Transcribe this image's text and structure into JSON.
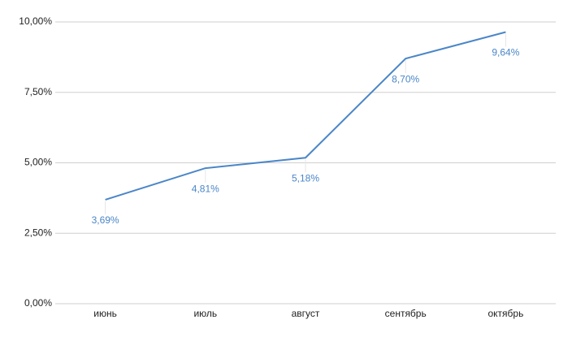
{
  "chart_data": {
    "type": "line",
    "categories": [
      "июнь",
      "июль",
      "август",
      "сентябрь",
      "октябрь"
    ],
    "series": [
      {
        "color": "#4a86c8",
        "values": [
          3.69,
          4.81,
          5.18,
          8.7,
          9.64
        ],
        "value_labels": [
          "3,69%",
          "4,81%",
          "5,18%",
          "8,70%",
          "9,64%"
        ]
      }
    ],
    "ylim": [
      0,
      10
    ],
    "yticks": [
      {
        "value": 0,
        "label": "0,00%"
      },
      {
        "value": 2.5,
        "label": "2,50%"
      },
      {
        "value": 5,
        "label": "5,00%"
      },
      {
        "value": 7.5,
        "label": "7,50%"
      },
      {
        "value": 10,
        "label": "10,00%"
      }
    ],
    "grid": true
  }
}
